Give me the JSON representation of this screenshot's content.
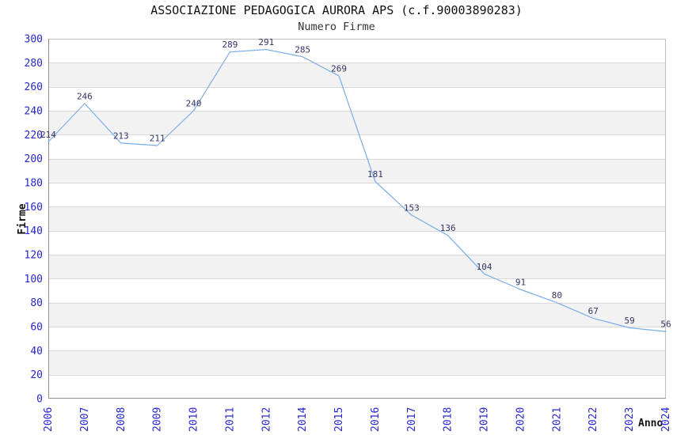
{
  "chart_data": {
    "type": "line",
    "title": "ASSOCIAZIONE PEDAGOGICA AURORA APS (c.f.90003890283)",
    "subtitle": "Numero Firme",
    "xlabel": "Anno",
    "ylabel": "Firme",
    "categories": [
      "2006",
      "2007",
      "2008",
      "2009",
      "2010",
      "2011",
      "2012",
      "2014",
      "2015",
      "2016",
      "2017",
      "2018",
      "2019",
      "2020",
      "2021",
      "2022",
      "2023",
      "2024"
    ],
    "values": [
      214,
      246,
      213,
      211,
      240,
      289,
      291,
      285,
      269,
      181,
      153,
      136,
      104,
      91,
      80,
      67,
      59,
      56
    ],
    "ylim": [
      0,
      300
    ],
    "ytick_step": 20,
    "grid": true,
    "legend": "none",
    "data_labels": true,
    "x_tick_rotation_deg": 90,
    "colors": {
      "line": "#7aade8",
      "data_label": "#333366",
      "tick_label": "#2626d2",
      "band_fill": "#f2f2f2",
      "grid_line": "#d9d9d9",
      "plot_border": "#c0c0c0",
      "axis_line": "#8f8f8f",
      "title": "#111111",
      "subtitle": "#333333",
      "axis_title": "#111111",
      "background": "#ffffff"
    }
  }
}
